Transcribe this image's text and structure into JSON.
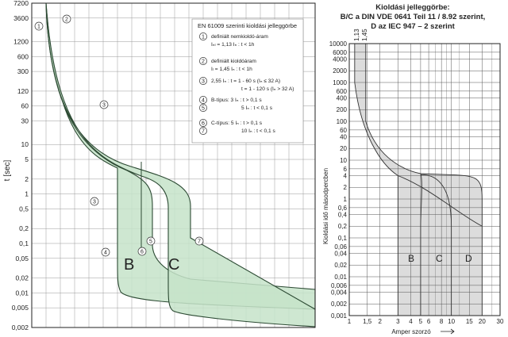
{
  "chart_data": [
    {
      "type": "area",
      "title": "EN 61009 szerinti kioldási jelleggörbe",
      "ylabel": "t [sec]",
      "xlabel": "",
      "scale": "log-log",
      "ylim": [
        0.002,
        7200
      ],
      "y_ticks": [
        {
          "v": 7200,
          "l": "7200"
        },
        {
          "v": 3600,
          "l": "3600"
        },
        {
          "v": 1200,
          "l": "1200"
        },
        {
          "v": 600,
          "l": "600"
        },
        {
          "v": 300,
          "l": "300"
        },
        {
          "v": 120,
          "l": "120"
        },
        {
          "v": 60,
          "l": "60"
        },
        {
          "v": 30,
          "l": "30"
        },
        {
          "v": 10,
          "l": "10"
        },
        {
          "v": 5,
          "l": "5"
        },
        {
          "v": 2,
          "l": "2"
        },
        {
          "v": 1,
          "l": "1"
        },
        {
          "v": 0.5,
          "l": "0,5"
        },
        {
          "v": 0.2,
          "l": "0,2"
        },
        {
          "v": 0.1,
          "l": "0,1"
        },
        {
          "v": 0.05,
          "l": "0,05"
        },
        {
          "v": 0.02,
          "l": "0,02"
        },
        {
          "v": 0.01,
          "l": "0,01"
        },
        {
          "v": 0.005,
          "l": "0,005"
        },
        {
          "v": 0.002,
          "l": "0,002"
        }
      ],
      "bands": [
        {
          "name": "B",
          "color": "#c5e3c9",
          "stroke": "#2c4a33"
        },
        {
          "name": "C",
          "color": "#c5e3c9",
          "stroke": "#2c4a33"
        }
      ],
      "markers": [
        "1",
        "2",
        "3",
        "3",
        "4",
        "5",
        "6",
        "7"
      ],
      "legend": [
        {
          "num": "1",
          "lines": [
            "definiált nemkioldó-áram",
            "Iₙₗ = 1,13 Iₙ : t < 1h"
          ]
        },
        {
          "num": "2",
          "lines": [
            "definiált kioldóáram",
            "Iₗ = 1,45 Iₙ : t < 1h"
          ]
        },
        {
          "num": "3",
          "lines": [
            "2,55 Iₙ : t = 1 - 60 s (Iₙ ≤ 32 A)",
            "t = 1 - 120 s (Iₙ > 32 A)"
          ]
        },
        {
          "num": "4",
          "num2": "5",
          "lines": [
            "B-típus: 3 Iₙ : t > 0,1 s",
            "5 Iₙ : t < 0,1 s"
          ]
        },
        {
          "num": "6",
          "num2": "7",
          "lines": [
            "C-típus: 5 Iₙ : t > 0,1 s",
            "10 Iₙ : t < 0,1 s"
          ]
        }
      ]
    },
    {
      "type": "area",
      "title": "Kioldási jelleggörbe:",
      "subtitle": [
        "B/C  a DIN VDE 0641 Teil 11 / 8.92 szerint,",
        "D az IEC 947 – 2 szerint"
      ],
      "ylabel": "Kioldási idő másodpercben",
      "xlabel": "Amper szorzó",
      "scale": "log-log",
      "ylim": [
        0.001,
        10000
      ],
      "xlim": [
        1,
        30
      ],
      "x_ticks": [
        {
          "v": 1,
          "l": "1"
        },
        {
          "v": 1.5,
          "l": "1,5"
        },
        {
          "v": 2,
          "l": "2"
        },
        {
          "v": 3,
          "l": "3"
        },
        {
          "v": 4,
          "l": "4"
        },
        {
          "v": 5,
          "l": "5"
        },
        {
          "v": 6,
          "l": "6"
        },
        {
          "v": 8,
          "l": "8"
        },
        {
          "v": 10,
          "l": "10"
        },
        {
          "v": 15,
          "l": "15"
        },
        {
          "v": 20,
          "l": "20"
        },
        {
          "v": 30,
          "l": "30"
        }
      ],
      "y_ticks": [
        {
          "v": 10000,
          "l": "10000"
        },
        {
          "v": 6000,
          "l": "6000"
        },
        {
          "v": 4000,
          "l": "4000"
        },
        {
          "v": 2000,
          "l": "2000"
        },
        {
          "v": 1000,
          "l": "1000"
        },
        {
          "v": 600,
          "l": "600"
        },
        {
          "v": 400,
          "l": "400"
        },
        {
          "v": 200,
          "l": "200"
        },
        {
          "v": 100,
          "l": "100"
        },
        {
          "v": 60,
          "l": "60"
        },
        {
          "v": 40,
          "l": "40"
        },
        {
          "v": 20,
          "l": "20"
        },
        {
          "v": 10,
          "l": "10"
        },
        {
          "v": 6,
          "l": "6"
        },
        {
          "v": 4,
          "l": "4"
        },
        {
          "v": 2,
          "l": "2"
        },
        {
          "v": 1,
          "l": "1"
        },
        {
          "v": 0.6,
          "l": "0,6"
        },
        {
          "v": 0.4,
          "l": "0,4"
        },
        {
          "v": 0.2,
          "l": "0,2"
        },
        {
          "v": 0.1,
          "l": "0,1"
        },
        {
          "v": 0.06,
          "l": "0,06"
        },
        {
          "v": 0.04,
          "l": "0,04"
        },
        {
          "v": 0.02,
          "l": "0,02"
        },
        {
          "v": 0.01,
          "l": "0,01"
        },
        {
          "v": 0.006,
          "l": "0,006"
        },
        {
          "v": 0.004,
          "l": "0,004"
        },
        {
          "v": 0.002,
          "l": "0,002"
        },
        {
          "v": 0.001,
          "l": "0,001"
        }
      ],
      "top_labels": [
        "1,13",
        "1,45"
      ],
      "series": [
        {
          "name": "B",
          "instant_trip_multiplier": [
            3,
            5
          ],
          "color": "#dcdcdc"
        },
        {
          "name": "C",
          "instant_trip_multiplier": [
            5,
            10
          ],
          "color": "#dcdcdc"
        },
        {
          "name": "D",
          "instant_trip_multiplier": [
            10,
            20
          ],
          "color": "#dcdcdc"
        }
      ]
    }
  ]
}
